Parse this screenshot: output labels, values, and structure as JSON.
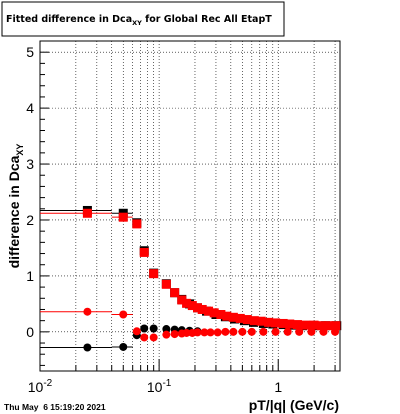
{
  "chart_data": {
    "type": "scatter",
    "title": "Fitted difference in Dca",
    "title_subscript": "XY",
    "title_suffix": " for Global Rec All EtapT",
    "xlabel": "pT/|q| (GeV/c)",
    "ylabel": "difference in Dca",
    "ylabel_subscript": "XY",
    "xscale": "log",
    "xlim": [
      0.01,
      3.3
    ],
    "ylim": [
      -0.7,
      5.2
    ],
    "grid": true,
    "x_tick_labels": [
      {
        "value": 0.01,
        "base": "10",
        "exp": "-2"
      },
      {
        "value": 0.1,
        "base": "10",
        "exp": "-1"
      },
      {
        "value": 1,
        "base": "1",
        "exp": ""
      }
    ],
    "y_ticks": [
      0,
      1,
      2,
      3,
      4,
      5
    ],
    "y_tick_labels": [
      "0",
      "1",
      "2",
      "3",
      "4",
      "5"
    ],
    "timestamp": "Thu May  6 15:19:20 2021",
    "series": [
      {
        "marker": "square",
        "color": "#000000",
        "points": [
          [
            0.025,
            2.17
          ],
          [
            0.05,
            2.12
          ],
          [
            0.065,
            1.95
          ],
          [
            0.075,
            1.45
          ],
          [
            0.09,
            1.05
          ],
          [
            0.115,
            0.86
          ],
          [
            0.135,
            0.7
          ],
          [
            0.155,
            0.58
          ],
          [
            0.18,
            0.5
          ],
          [
            0.21,
            0.43
          ],
          [
            0.25,
            0.37
          ],
          [
            0.3,
            0.31
          ],
          [
            0.36,
            0.27
          ],
          [
            0.43,
            0.23
          ],
          [
            0.52,
            0.2
          ],
          [
            0.62,
            0.17
          ],
          [
            0.75,
            0.15
          ],
          [
            0.9,
            0.14
          ],
          [
            1.1,
            0.13
          ],
          [
            1.3,
            0.12
          ],
          [
            1.6,
            0.11
          ],
          [
            2.0,
            0.11
          ],
          [
            2.5,
            0.11
          ],
          [
            3.1,
            0.11
          ]
        ],
        "xerr_lo": [
          0.015,
          0.01,
          0.005,
          0.005,
          0.005,
          0.005,
          0.005,
          0.005,
          0.01,
          0.01,
          0.02,
          0.02,
          0.02,
          0.03,
          0.03,
          0.04,
          0.05,
          0.05,
          0.07,
          0.08,
          0.1,
          0.13,
          0.17,
          0.2
        ]
      },
      {
        "marker": "square",
        "color": "#ff0000",
        "points": [
          [
            0.025,
            2.12
          ],
          [
            0.05,
            2.05
          ],
          [
            0.065,
            1.93
          ],
          [
            0.075,
            1.42
          ],
          [
            0.09,
            1.04
          ],
          [
            0.115,
            0.85
          ],
          [
            0.135,
            0.7
          ],
          [
            0.155,
            0.57
          ],
          [
            0.17,
            0.51
          ],
          [
            0.19,
            0.47
          ],
          [
            0.21,
            0.43
          ],
          [
            0.23,
            0.4
          ],
          [
            0.26,
            0.37
          ],
          [
            0.29,
            0.34
          ],
          [
            0.33,
            0.31
          ],
          [
            0.37,
            0.28
          ],
          [
            0.42,
            0.26
          ],
          [
            0.48,
            0.24
          ],
          [
            0.55,
            0.22
          ],
          [
            0.63,
            0.2
          ],
          [
            0.72,
            0.19
          ],
          [
            0.83,
            0.17
          ],
          [
            0.95,
            0.16
          ],
          [
            1.1,
            0.15
          ],
          [
            1.25,
            0.14
          ],
          [
            1.45,
            0.13
          ],
          [
            1.7,
            0.12
          ],
          [
            2.0,
            0.12
          ],
          [
            2.3,
            0.11
          ],
          [
            2.65,
            0.11
          ],
          [
            3.05,
            0.11
          ]
        ],
        "xerr_lo": [
          0.015,
          0.01,
          0.005,
          0.005,
          0.005,
          0.005,
          0.005,
          0.005,
          0.005,
          0.005,
          0.005,
          0.005,
          0.005,
          0.01,
          0.01,
          0.01,
          0.01,
          0.01,
          0.02,
          0.02,
          0.02,
          0.03,
          0.03,
          0.03,
          0.03,
          0.04,
          0.05,
          0.05,
          0.06,
          0.07,
          0.08
        ]
      },
      {
        "marker": "circle",
        "color": "#000000",
        "points": [
          [
            0.025,
            -0.28
          ],
          [
            0.05,
            -0.27
          ],
          [
            0.065,
            -0.06
          ],
          [
            0.075,
            0.06
          ],
          [
            0.09,
            0.06
          ],
          [
            0.115,
            0.05
          ],
          [
            0.135,
            0.04
          ],
          [
            0.155,
            0.03
          ],
          [
            0.18,
            0.02
          ],
          [
            0.21,
            0.01
          ]
        ],
        "xerr_lo": [
          0.015,
          0.01,
          0.005,
          0.005,
          0.005,
          0.005,
          0.005,
          0.005,
          0.005,
          0.005
        ]
      },
      {
        "marker": "circle",
        "color": "#ff0000",
        "points": [
          [
            0.025,
            0.36
          ],
          [
            0.05,
            0.31
          ],
          [
            0.065,
            0.01
          ],
          [
            0.075,
            -0.1
          ],
          [
            0.09,
            -0.1
          ],
          [
            0.115,
            -0.05
          ],
          [
            0.135,
            -0.04
          ],
          [
            0.155,
            -0.03
          ],
          [
            0.17,
            -0.02
          ],
          [
            0.19,
            -0.02
          ],
          [
            0.21,
            -0.01
          ],
          [
            0.24,
            -0.01
          ],
          [
            0.27,
            -0.01
          ],
          [
            0.31,
            -0.01
          ],
          [
            0.36,
            0.0
          ],
          [
            0.42,
            0.0
          ],
          [
            0.5,
            0.0
          ],
          [
            0.6,
            0.0
          ],
          [
            0.75,
            0.0
          ],
          [
            0.95,
            0.0
          ],
          [
            1.2,
            0.0
          ],
          [
            1.5,
            0.0
          ],
          [
            1.9,
            0.0
          ],
          [
            2.4,
            0.0
          ],
          [
            3.0,
            0.0
          ]
        ],
        "xerr_lo": [
          0.015,
          0.01,
          0.005,
          0.005,
          0.005,
          0.005,
          0.005,
          0.005,
          0.005,
          0.005,
          0.005,
          0.01,
          0.01,
          0.01,
          0.01,
          0.02,
          0.02,
          0.03,
          0.04,
          0.05,
          0.06,
          0.08,
          0.1,
          0.12,
          0.15
        ]
      }
    ]
  }
}
